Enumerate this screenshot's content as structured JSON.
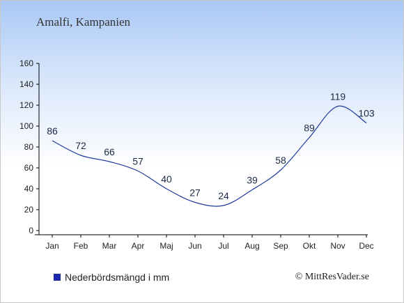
{
  "chart_data": {
    "type": "line",
    "title": "Amalfi, Kampanien",
    "categories": [
      "Jan",
      "Feb",
      "Mar",
      "Apr",
      "Maj",
      "Jun",
      "Jul",
      "Aug",
      "Sep",
      "Okt",
      "Nov",
      "Dec"
    ],
    "series": [
      {
        "name": "Nederbördsmängd i mm",
        "values": [
          86,
          72,
          66,
          57,
          40,
          27,
          24,
          39,
          58,
          89,
          119,
          103
        ]
      }
    ],
    "ylim": [
      0,
      160
    ],
    "yticks": [
      0,
      20,
      40,
      60,
      80,
      100,
      120,
      140,
      160
    ],
    "grid": false,
    "legend": "bottom-left"
  },
  "colors": {
    "line": "#1f3a9c",
    "legend_swatch": "#1a2aa8",
    "axis": "#000000",
    "text": "#1a2a44"
  },
  "credit": "© MittResVader.se"
}
